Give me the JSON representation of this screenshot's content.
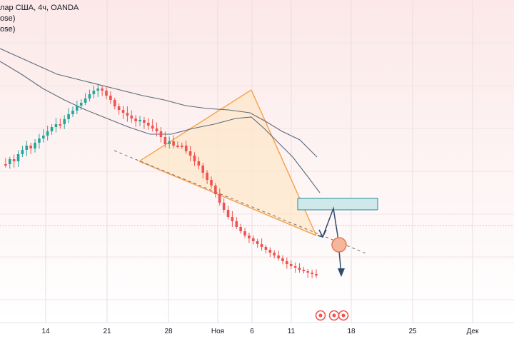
{
  "header": {
    "symbol_line": "лар США, 4ч, OANDA",
    "indicator_lines": [
      "ose)",
      "ose)"
    ]
  },
  "colors": {
    "bg_top": "#fce8e8",
    "bg_bottom": "#ffffff",
    "candle_up": "#26a69a",
    "candle_down": "#ef5350",
    "ma_color": "#5b6b7a",
    "pattern_fill": "#fde7c8",
    "pattern_stroke": "#f5a555",
    "zone_fill": "#cfe8ea",
    "zone_stroke": "#1e8a9a",
    "arrow": "#2f4a6b",
    "circle_fill": "#f4b79a",
    "circle_stroke": "#e07a5f"
  },
  "chart_data": {
    "type": "candlestick",
    "symbol": "лар США, 4ч, OANDA",
    "xaxis_ticks": [
      "14",
      "21",
      "28",
      "Ноя",
      "6",
      "11",
      "18",
      "25",
      "Дек"
    ],
    "close_path": [
      200,
      200,
      207,
      204,
      214,
      220,
      226,
      222,
      230,
      236,
      240,
      246,
      252,
      256,
      256,
      263,
      270,
      275,
      282,
      286,
      292,
      298,
      303,
      306,
      303,
      296,
      290,
      281,
      276,
      272,
      268,
      264,
      260,
      262,
      258,
      254,
      250,
      246,
      238,
      228,
      232,
      226,
      226,
      226,
      218,
      212,
      204,
      198,
      188,
      178,
      170,
      158,
      146,
      136,
      126,
      120,
      112,
      106,
      100,
      96,
      92,
      88,
      84,
      80,
      76,
      72,
      68,
      64,
      60,
      57,
      55,
      52,
      50,
      48,
      46,
      44
    ]
  }
}
